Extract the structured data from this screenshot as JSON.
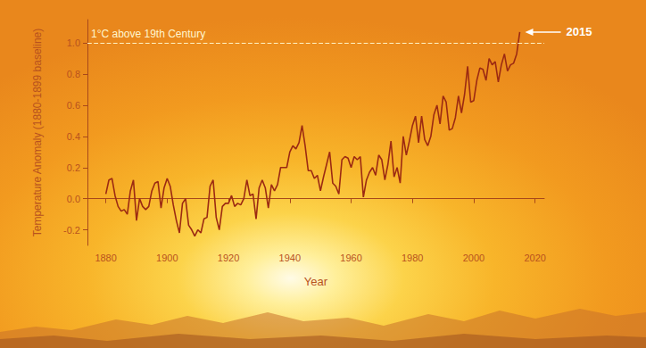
{
  "chart_data": {
    "type": "line",
    "xlabel": "Year",
    "ylabel": "Temperature Anomaly (1880-1899 baseline)",
    "color": "#9c2a12",
    "line_style": "solid",
    "grid": false,
    "xlim": [
      1874,
      2023
    ],
    "xticks": [
      1880,
      1900,
      1920,
      1940,
      1960,
      1980,
      2000,
      2020
    ],
    "ylim": [
      -0.3,
      1.15
    ],
    "yticks": [
      -0.2,
      {
        "value": 0,
        "label": "0.0"
      },
      0.2,
      0.4,
      0.6,
      0.8,
      {
        "value": 1,
        "label": "1.0"
      }
    ],
    "x": [
      1880,
      1881,
      1882,
      1883,
      1884,
      1885,
      1886,
      1887,
      1888,
      1889,
      1890,
      1891,
      1892,
      1893,
      1894,
      1895,
      1896,
      1897,
      1898,
      1899,
      1900,
      1901,
      1902,
      1903,
      1904,
      1905,
      1906,
      1907,
      1908,
      1909,
      1910,
      1911,
      1912,
      1913,
      1914,
      1915,
      1916,
      1917,
      1918,
      1919,
      1920,
      1921,
      1922,
      1923,
      1924,
      1925,
      1926,
      1927,
      1928,
      1929,
      1930,
      1931,
      1932,
      1933,
      1934,
      1935,
      1936,
      1937,
      1938,
      1939,
      1940,
      1941,
      1942,
      1943,
      1944,
      1945,
      1946,
      1947,
      1948,
      1949,
      1950,
      1951,
      1952,
      1953,
      1954,
      1955,
      1956,
      1957,
      1958,
      1959,
      1960,
      1961,
      1962,
      1963,
      1964,
      1965,
      1966,
      1967,
      1968,
      1969,
      1970,
      1971,
      1972,
      1973,
      1974,
      1975,
      1976,
      1977,
      1978,
      1979,
      1980,
      1981,
      1982,
      1983,
      1984,
      1985,
      1986,
      1987,
      1988,
      1989,
      1990,
      1991,
      1992,
      1993,
      1994,
      1995,
      1996,
      1997,
      1998,
      1999,
      2000,
      2001,
      2002,
      2003,
      2004,
      2005,
      2006,
      2007,
      2008,
      2009,
      2010,
      2011,
      2012,
      2013,
      2014,
      2015
    ],
    "values": [
      0.03,
      0.12,
      0.13,
      0.02,
      -0.05,
      -0.08,
      -0.07,
      -0.1,
      0.05,
      0.12,
      -0.14,
      0.0,
      -0.05,
      -0.07,
      -0.05,
      0.05,
      0.1,
      0.11,
      -0.06,
      0.07,
      0.13,
      0.08,
      -0.04,
      -0.14,
      -0.22,
      -0.03,
      0.0,
      -0.17,
      -0.2,
      -0.24,
      -0.2,
      -0.22,
      -0.13,
      -0.12,
      0.08,
      0.12,
      -0.12,
      -0.2,
      -0.05,
      -0.03,
      -0.03,
      0.02,
      -0.05,
      -0.03,
      -0.04,
      0.0,
      0.12,
      0.02,
      0.03,
      -0.13,
      0.07,
      0.12,
      0.07,
      -0.06,
      0.09,
      0.05,
      0.09,
      0.2,
      0.2,
      0.2,
      0.3,
      0.34,
      0.32,
      0.36,
      0.47,
      0.34,
      0.18,
      0.18,
      0.13,
      0.15,
      0.05,
      0.14,
      0.22,
      0.3,
      0.1,
      0.08,
      0.03,
      0.25,
      0.27,
      0.26,
      0.2,
      0.27,
      0.25,
      0.27,
      0.01,
      0.12,
      0.17,
      0.2,
      0.15,
      0.28,
      0.25,
      0.12,
      0.22,
      0.37,
      0.14,
      0.2,
      0.1,
      0.4,
      0.28,
      0.37,
      0.47,
      0.53,
      0.36,
      0.53,
      0.38,
      0.34,
      0.4,
      0.54,
      0.6,
      0.48,
      0.66,
      0.62,
      0.44,
      0.45,
      0.52,
      0.66,
      0.55,
      0.67,
      0.85,
      0.62,
      0.63,
      0.76,
      0.84,
      0.83,
      0.76,
      0.9,
      0.86,
      0.88,
      0.75,
      0.86,
      0.93,
      0.82,
      0.86,
      0.87,
      0.93,
      1.07
    ],
    "annotations": [
      {
        "text": "1°C above 19th Century",
        "y": 1,
        "line_style": "dashed"
      },
      {
        "text": "2015",
        "x": 2015
      }
    ]
  }
}
